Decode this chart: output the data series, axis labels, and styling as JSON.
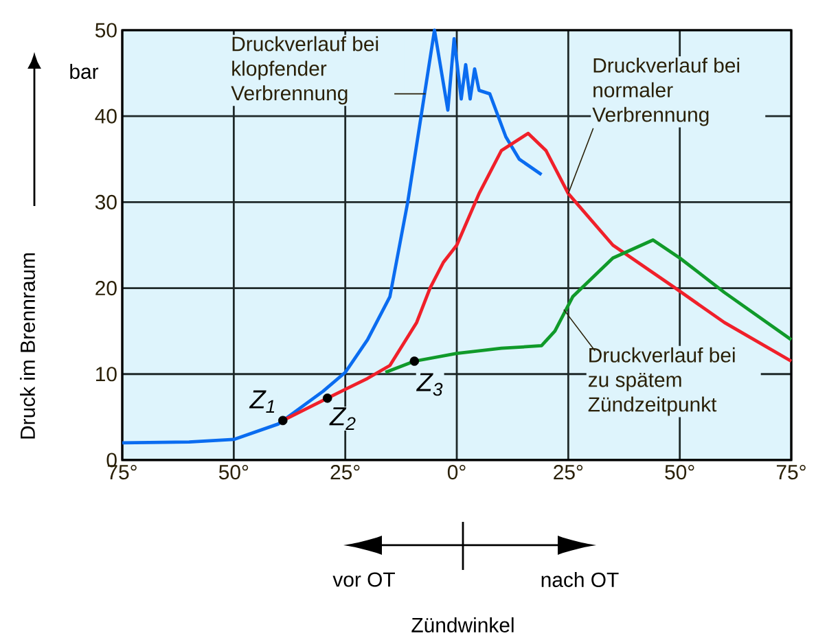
{
  "chart_data": {
    "type": "line",
    "ylabel": "Druck im Brennraum",
    "xlim": [
      -75,
      75
    ],
    "ylim": [
      0,
      50
    ],
    "xticks": [
      {
        "value": -75,
        "label": "75°"
      },
      {
        "value": -50,
        "label": "50°"
      },
      {
        "value": -25,
        "label": "25°"
      },
      {
        "value": 0,
        "label": "0°"
      },
      {
        "value": 25,
        "label": "25°"
      },
      {
        "value": 50,
        "label": "50°"
      },
      {
        "value": 75,
        "label": "75°"
      }
    ],
    "yticks": [
      0,
      10,
      20,
      30,
      40,
      50
    ],
    "grid": true,
    "series": [
      {
        "color": "#0a6cf0",
        "x": [
          -75,
          -60,
          -50,
          -40,
          -30,
          -25,
          -20,
          -15,
          -11,
          -8,
          -5,
          -2,
          -0.6,
          1,
          2,
          3,
          4,
          5,
          7.4,
          11,
          14,
          19
        ],
        "values": [
          2,
          2.1,
          2.4,
          4.2,
          8,
          10.2,
          14,
          19,
          30,
          40,
          50,
          40.7,
          49,
          42,
          46,
          42,
          45.5,
          43,
          42.6,
          37.6,
          35,
          33.2
        ]
      },
      {
        "color": "#f0202a",
        "x": [
          -39,
          -29,
          -20,
          -15,
          -12,
          -9,
          -6,
          -3,
          0,
          5,
          10,
          16,
          20,
          25,
          35,
          49,
          60,
          75
        ],
        "values": [
          4.6,
          7.2,
          9.5,
          11,
          13.5,
          16,
          20,
          23,
          25,
          31,
          36,
          38,
          36,
          31,
          25,
          20,
          16,
          11.5
        ]
      },
      {
        "color": "#109a2a",
        "x": [
          -16,
          -9.5,
          0,
          10,
          19,
          22,
          26,
          35,
          44,
          50,
          60,
          75
        ],
        "values": [
          10.2,
          11.5,
          12.4,
          13,
          13.3,
          15,
          19,
          23.5,
          25.6,
          23.5,
          19.5,
          14
        ]
      },
      {
        "type": "scatter",
        "color": "#000000",
        "x": [
          -39,
          -29,
          -9.5
        ],
        "values": [
          4.6,
          7.2,
          11.5
        ]
      }
    ],
    "annotations": [
      {
        "text": "Druckverlauf bei klopfender Verbrennung",
        "x": -7,
        "y": 42.6
      },
      {
        "text": "Druckverlauf bei normaler Verbrennung",
        "x": 25,
        "y": 31
      },
      {
        "text": "Druckverlauf bei zu spätem Zündzeitpunkt",
        "x": 24,
        "y": 17.5
      },
      {
        "text": "Z$_{1}$",
        "x": -39,
        "y": 4.6
      },
      {
        "text": "Z$_{2}$",
        "x": -29,
        "y": 7.2
      },
      {
        "text": "Z$_{3}$",
        "x": -9.5,
        "y": 11.5
      },
      "bar",
      "vor OT",
      "nach OT",
      "Zündwinkel"
    ]
  }
}
